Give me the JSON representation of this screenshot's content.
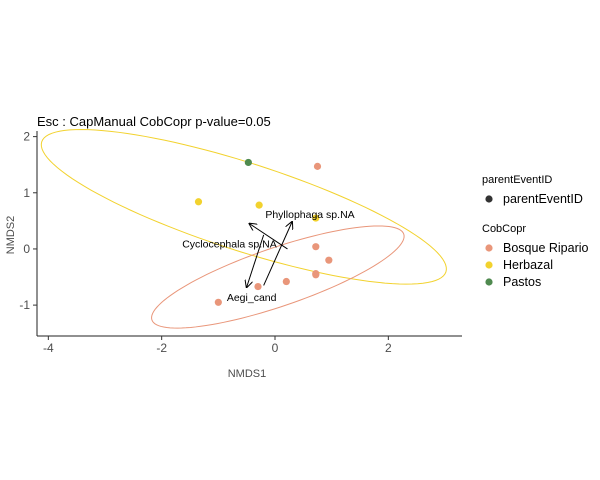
{
  "chart_data": {
    "type": "scatter",
    "title": "Esc : CapManual CobCopr  p-value=0.05",
    "xlabel": "NMDS1",
    "ylabel": "NMDS2",
    "xlim": [
      -4.2,
      3.3
    ],
    "ylim": [
      -1.55,
      2.1
    ],
    "x_ticks": [
      -4,
      -2,
      0,
      2
    ],
    "x_tick_labels": [
      "-4",
      "-2",
      "0",
      "2"
    ],
    "y_ticks": [
      -1,
      0,
      1,
      2
    ],
    "y_tick_labels": [
      "-1",
      "0",
      "1",
      "2"
    ],
    "grid": false,
    "legend_position": "right",
    "series": [
      {
        "name": "Bosque Ripario",
        "color": "#E9967A",
        "points": [
          {
            "x": 0.75,
            "y": 1.47
          },
          {
            "x": 0.72,
            "y": 0.04
          },
          {
            "x": 0.95,
            "y": -0.2
          },
          {
            "x": 0.72,
            "y": -0.44
          },
          {
            "x": 0.72,
            "y": -0.46
          },
          {
            "x": 0.2,
            "y": -0.58
          },
          {
            "x": -0.3,
            "y": -0.67
          },
          {
            "x": -1.0,
            "y": -0.95
          }
        ]
      },
      {
        "name": "Herbazal",
        "color": "#F2D22E",
        "points": [
          {
            "x": -1.35,
            "y": 0.84
          },
          {
            "x": -0.28,
            "y": 0.78
          },
          {
            "x": 0.72,
            "y": 0.55
          }
        ]
      },
      {
        "name": "Pastos",
        "color": "#4F8A4F",
        "points": [
          {
            "x": -0.47,
            "y": 1.54
          }
        ]
      }
    ],
    "ellipses": [
      {
        "group": "Herbazal",
        "color": "#F2D22E",
        "center": [
          -0.55,
          0.75
        ],
        "semi_major": 3.75,
        "semi_minor": 0.78,
        "angle_deg": -18
      },
      {
        "group": "Bosque Ripario",
        "color": "#E9967A",
        "center": [
          0.05,
          -0.5
        ],
        "semi_major": 2.35,
        "semi_minor": 0.52,
        "angle_deg": 19
      }
    ],
    "vectors": [
      {
        "label": "Phyllophaga sp.NA",
        "from": [
          -0.2,
          -0.65
        ],
        "to": [
          0.3,
          0.48
        ]
      },
      {
        "label": "Cyclocephala sp.NA",
        "from": [
          0.22,
          0.0
        ],
        "to": [
          -0.45,
          0.45
        ]
      },
      {
        "label": "Aegi_cand",
        "from": [
          -0.2,
          0.25
        ],
        "to": [
          -0.5,
          -0.68
        ]
      }
    ],
    "legends": [
      {
        "title": "parentEventID",
        "items": [
          {
            "label": "parentEventID",
            "color": "#333333"
          }
        ]
      },
      {
        "title": "CobCopr",
        "items": [
          {
            "label": "Bosque Ripario",
            "color": "#E9967A"
          },
          {
            "label": "Herbazal",
            "color": "#F2D22E"
          },
          {
            "label": "Pastos",
            "color": "#4F8A4F"
          }
        ]
      }
    ]
  }
}
